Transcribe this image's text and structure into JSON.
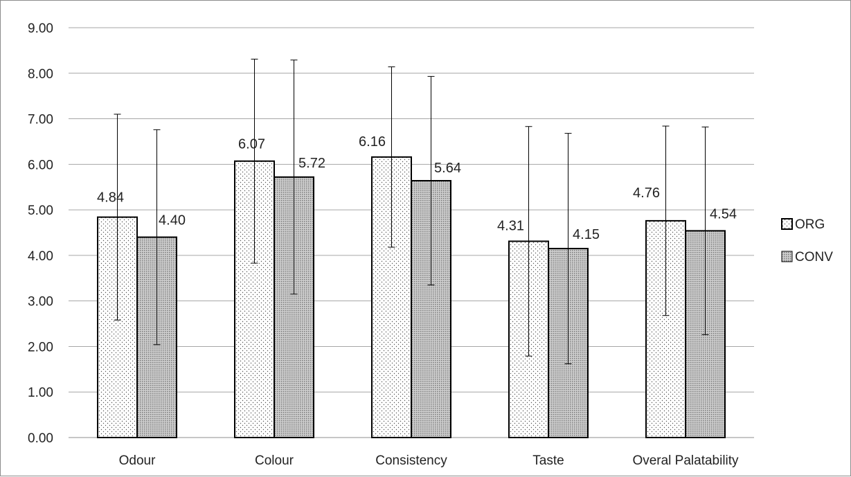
{
  "chart_data": {
    "type": "bar",
    "categories": [
      "Odour",
      "Colour",
      "Consistency",
      "Taste",
      "Overal Palatability"
    ],
    "series": [
      {
        "name": "ORG",
        "values": [
          4.84,
          6.07,
          6.16,
          4.31,
          4.76
        ],
        "value_labels": [
          "4.84",
          "6.07",
          "6.16",
          "4.31",
          "4.76"
        ],
        "error": [
          2.26,
          2.24,
          1.98,
          2.52,
          2.08
        ],
        "pattern": "fine-dots"
      },
      {
        "name": "CONV",
        "values": [
          4.4,
          5.72,
          5.64,
          4.15,
          4.54
        ],
        "value_labels": [
          "4.40",
          "5.72",
          "5.64",
          "4.15",
          "4.54"
        ],
        "error": [
          2.36,
          2.57,
          2.29,
          2.53,
          2.28
        ],
        "pattern": "dense-dots"
      }
    ],
    "y_ticks": [
      "0.00",
      "1.00",
      "2.00",
      "3.00",
      "4.00",
      "5.00",
      "6.00",
      "7.00",
      "8.00",
      "9.00"
    ],
    "ylim": [
      0,
      9
    ],
    "grid": true,
    "legend_position": "right",
    "title": "",
    "xlabel": "",
    "ylabel": ""
  }
}
